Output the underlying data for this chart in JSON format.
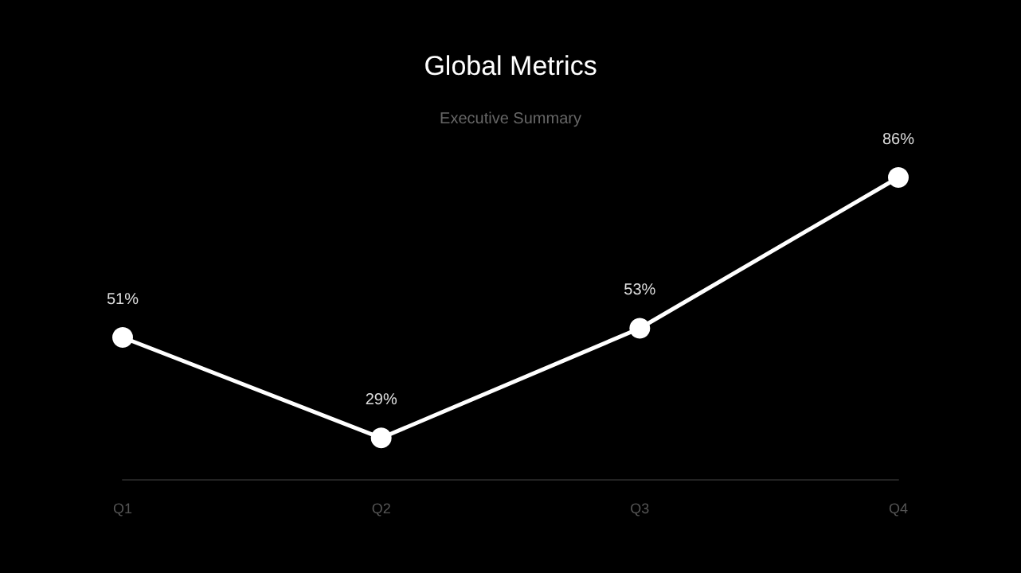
{
  "chart_data": {
    "type": "line",
    "title": "Global Metrics",
    "subtitle": "Executive Summary",
    "categories": [
      "Q1",
      "Q2",
      "Q3",
      "Q4"
    ],
    "series": [
      {
        "color": "#ffffff",
        "values": [
          51,
          29,
          53,
          86
        ],
        "value_labels": [
          "51%",
          "29%",
          "53%",
          "86%"
        ]
      }
    ],
    "marker": "circle"
  }
}
